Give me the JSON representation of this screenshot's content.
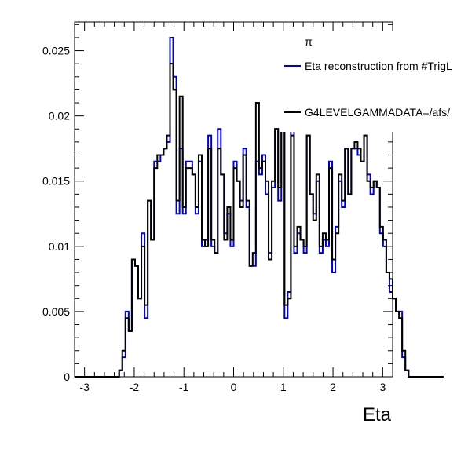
{
  "chart_data": {
    "type": "line",
    "style": "step-histogram",
    "title": "",
    "xlabel": "Eta",
    "ylabel": "",
    "xlim": [
      -3.2,
      3.2
    ],
    "ylim": [
      0,
      0.0272
    ],
    "grid": false,
    "x_ticks": [
      "-3",
      "-2",
      "-1",
      "0",
      "1",
      "2",
      "3"
    ],
    "y_ticks": [
      "0",
      "0.005",
      "0.01",
      "0.015",
      "0.02",
      "0.025"
    ],
    "legend": {
      "placement": "top-right",
      "header": "π",
      "entries": [
        {
          "label": "Eta reconstruction from #TrigL",
          "color": "#0000cc"
        },
        {
          "label": "G4LEVELGAMMADATA=/afs/",
          "color": "#000000"
        }
      ]
    },
    "bin_edges_start": -3.2,
    "bin_width": 0.064,
    "series": [
      {
        "name": "Eta reconstruction from #TrigL",
        "color": "#0000cc",
        "values": [
          0,
          0,
          0,
          0,
          0,
          0,
          0,
          0,
          0,
          0,
          0,
          0,
          0,
          0,
          0.0005,
          0.0015,
          0.005,
          0.0035,
          0.009,
          0.0085,
          0.006,
          0.011,
          0.0045,
          0.0135,
          0.0105,
          0.0165,
          0.0165,
          0.017,
          0.0175,
          0.018,
          0.026,
          0.023,
          0.0125,
          0.0175,
          0.0125,
          0.0165,
          0.0165,
          0.0155,
          0.0125,
          0.0165,
          0.01,
          0.0105,
          0.0185,
          0.01,
          0.0095,
          0.019,
          0.0155,
          0.011,
          0.0125,
          0.01,
          0.0165,
          0.015,
          0.0135,
          0.0175,
          0.013,
          0.0085,
          0.0085,
          0.0165,
          0.0155,
          0.017,
          0.014,
          0.0095,
          0.0145,
          0.019,
          0.0135,
          0.019,
          0.0045,
          0.0065,
          0.0195,
          0.0095,
          0.011,
          0.0105,
          0.0095,
          0.0185,
          0.014,
          0.0125,
          0.015,
          0.0095,
          0.0105,
          0.01,
          0.0165,
          0.008,
          0.0115,
          0.015,
          0.013,
          0.0175,
          0.014,
          0.0175,
          0.0175,
          0.017,
          0.0165,
          0.0185,
          0.0155,
          0.014,
          0.015,
          0.0145,
          0.011,
          0.01,
          0.008,
          0.0065,
          0.006,
          0.005,
          0.005,
          0.0015,
          0.0005,
          0,
          0,
          0,
          0,
          0,
          0,
          0,
          0,
          0,
          0,
          0
        ]
      },
      {
        "name": "G4LEVELGAMMADATA=/afs/",
        "color": "#000000",
        "values": [
          0,
          0,
          0,
          0,
          0,
          0,
          0,
          0,
          0,
          0,
          0,
          0,
          0,
          0,
          0.0005,
          0.002,
          0.0045,
          0.0035,
          0.009,
          0.0085,
          0.006,
          0.01,
          0.0055,
          0.0135,
          0.0105,
          0.016,
          0.017,
          0.017,
          0.0175,
          0.0185,
          0.024,
          0.022,
          0.0135,
          0.0215,
          0.013,
          0.016,
          0.016,
          0.0155,
          0.013,
          0.017,
          0.0105,
          0.01,
          0.0175,
          0.0105,
          0.0095,
          0.0175,
          0.0155,
          0.0105,
          0.013,
          0.0105,
          0.016,
          0.015,
          0.013,
          0.017,
          0.0135,
          0.0085,
          0.0095,
          0.021,
          0.016,
          0.0165,
          0.015,
          0.009,
          0.015,
          0.019,
          0.0145,
          0.019,
          0.0055,
          0.006,
          0.0185,
          0.01,
          0.0115,
          0.0105,
          0.01,
          0.0185,
          0.014,
          0.012,
          0.0155,
          0.01,
          0.011,
          0.0105,
          0.016,
          0.009,
          0.011,
          0.0155,
          0.0135,
          0.0175,
          0.014,
          0.0175,
          0.018,
          0.0175,
          0.0165,
          0.0185,
          0.015,
          0.0145,
          0.015,
          0.0145,
          0.0115,
          0.0105,
          0.008,
          0.0075,
          0.006,
          0.005,
          0.0045,
          0.002,
          0.0005,
          0,
          0,
          0,
          0,
          0,
          0,
          0,
          0,
          0,
          0,
          0
        ]
      }
    ]
  }
}
